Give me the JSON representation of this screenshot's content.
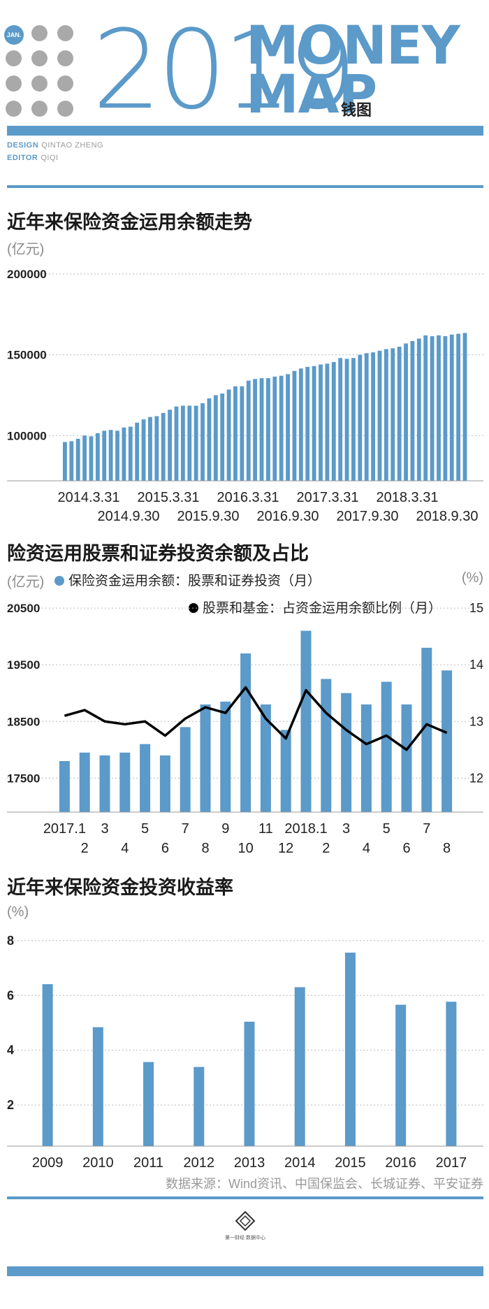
{
  "header": {
    "badge": "JAN.",
    "year": "2019",
    "money_line1": "MONEY",
    "money_line2": "MAP",
    "cn_title": "钱图",
    "design_label": "DESIGN",
    "design_value": "QINTAO ZHENG",
    "editor_label": "EDITOR",
    "editor_value": "QIQI"
  },
  "colors": {
    "accent": "#5b9ac9",
    "line": "#000000",
    "dots": "#a9a9a9"
  },
  "charts": {
    "c1": {
      "title": "近年来保险资金运用余额走势",
      "unit": "(亿元)"
    },
    "c2": {
      "title": "险资运用股票和证券投资余额及占比",
      "unit_left": "(亿元)",
      "unit_right": "(%)",
      "legend_bar": "保险资金运用余额：股票和证券投资（月）",
      "legend_line": "股票和基金：占资金运用余额比例（月）"
    },
    "c3": {
      "title": "近年来保险资金投资收益率",
      "unit": "(%)"
    }
  },
  "footer": {
    "source": "数据来源：Wind资讯、中国保监会、长城证券、平安证券",
    "logo_text": "第一财经 数据中心"
  },
  "chart_data": [
    {
      "type": "bar",
      "title": "近年来保险资金运用余额走势",
      "ylabel": "(亿元)",
      "ylim": [
        72000,
        200000
      ],
      "yticks": [
        100000,
        150000,
        200000
      ],
      "xtick_labels_row1": [
        "2014.3.31",
        "2015.3.31",
        "2016.3.31",
        "2017.3.31",
        "2018.3.31"
      ],
      "xtick_labels_row2": [
        "2014.9.30",
        "2015.9.30",
        "2016.9.30",
        "2017.9.30",
        "2018.9.30"
      ],
      "values": [
        96000,
        96500,
        98000,
        100000,
        99500,
        101500,
        103000,
        103500,
        103000,
        105000,
        105500,
        108000,
        110000,
        111500,
        112000,
        114000,
        116000,
        118000,
        118500,
        118500,
        118500,
        120000,
        123000,
        125000,
        126000,
        128500,
        130500,
        130500,
        134000,
        135000,
        135500,
        135500,
        136500,
        137000,
        138000,
        140000,
        141500,
        142500,
        143000,
        144000,
        144500,
        145500,
        148000,
        147500,
        148000,
        150000,
        151000,
        151500,
        152500,
        153500,
        154000,
        155000,
        157000,
        158500,
        160000,
        162000,
        161500,
        162000,
        161500,
        162500,
        163000,
        163500
      ]
    },
    {
      "type": "bar",
      "title": "险资运用股票和证券投资余额及占比",
      "ylabel": "(亿元)",
      "y2label": "(%)",
      "ylim": [
        16900,
        20600
      ],
      "yticks": [
        17500,
        18500,
        19500,
        20500
      ],
      "y2lim": [
        11.4,
        15.1
      ],
      "y2ticks": [
        12,
        13,
        14,
        15
      ],
      "categories": [
        "2017.1",
        "2",
        "3",
        "4",
        "5",
        "6",
        "7",
        "8",
        "9",
        "10",
        "11",
        "12",
        "2018.1",
        "2",
        "3",
        "4",
        "5",
        "6",
        "7",
        "8"
      ],
      "series": [
        {
          "name": "保险资金运用余额：股票和证券投资（月）",
          "type": "bar",
          "axis": "left",
          "values": [
            17800,
            17950,
            17900,
            17950,
            18100,
            17900,
            18400,
            18800,
            18850,
            19700,
            18800,
            18350,
            20100,
            19250,
            19000,
            18800,
            19200,
            18800,
            19800,
            19400
          ]
        },
        {
          "name": "股票和基金：占资金运用余额比例（月）",
          "type": "line",
          "axis": "right",
          "values": [
            13.1,
            13.2,
            13.0,
            12.95,
            13.0,
            12.75,
            13.05,
            13.25,
            13.15,
            13.6,
            13.05,
            12.7,
            13.55,
            13.15,
            12.85,
            12.6,
            12.75,
            12.5,
            12.95,
            12.8
          ]
        }
      ]
    },
    {
      "type": "bar",
      "title": "近年来保险资金投资收益率",
      "ylabel": "(%)",
      "ylim": [
        0.5,
        8.2
      ],
      "yticks": [
        2,
        4,
        6,
        8
      ],
      "categories": [
        "2009",
        "2010",
        "2011",
        "2012",
        "2013",
        "2014",
        "2015",
        "2016",
        "2017"
      ],
      "values": [
        6.41,
        4.84,
        3.57,
        3.39,
        5.04,
        6.3,
        7.56,
        5.66,
        5.77
      ]
    }
  ]
}
